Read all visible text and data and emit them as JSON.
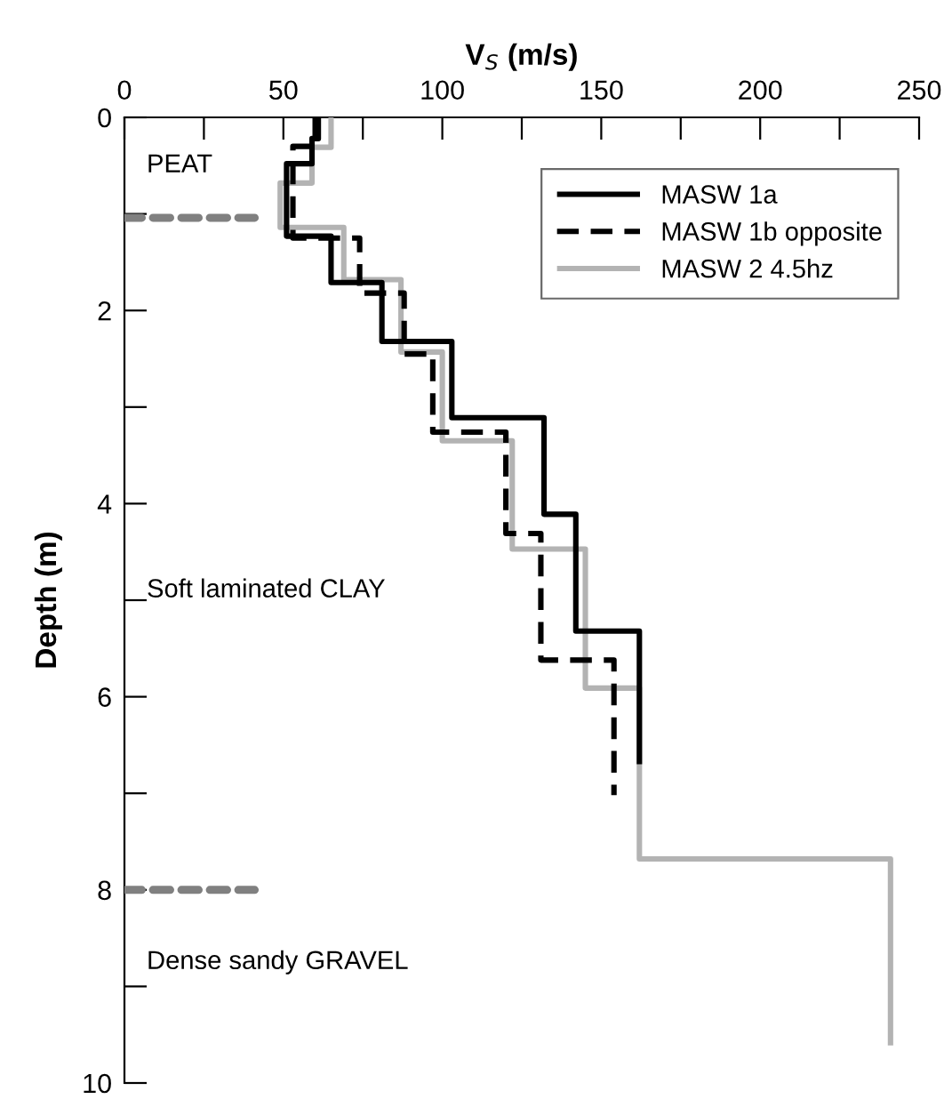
{
  "chart_data": {
    "type": "line",
    "xlabel": "V$_{S}$ (m/s)",
    "ylabel": "Depth (m)",
    "xlim": [
      0,
      250
    ],
    "ylim": [
      10,
      0
    ],
    "xticks": [
      0,
      {
        "value": 25,
        "label": null
      },
      50,
      {
        "value": 75,
        "label": null
      },
      100,
      {
        "value": 125,
        "label": null
      },
      150,
      {
        "value": 175,
        "label": null
      },
      200,
      {
        "value": 225,
        "label": null
      },
      250
    ],
    "yticks": [
      0,
      {
        "value": 1,
        "label": null
      },
      2,
      {
        "value": 3,
        "label": null
      },
      4,
      {
        "value": 5,
        "label": null
      },
      6,
      {
        "value": 7,
        "label": null
      },
      8,
      {
        "value": 9,
        "label": null
      },
      10
    ],
    "grid": false,
    "legend": "top right",
    "marker": "none",
    "series": [
      {
        "name": "MASW 1a",
        "color": "#000000",
        "line_style": "solid",
        "x": [
          61,
          61,
          59,
          59,
          51,
          51,
          65,
          65,
          81,
          81,
          103,
          103,
          132,
          132,
          142,
          142,
          162,
          162
        ],
        "values": [
          0,
          0.22,
          0.22,
          0.48,
          0.48,
          1.23,
          1.23,
          1.71,
          1.71,
          2.32,
          2.32,
          3.11,
          3.11,
          4.11,
          4.11,
          5.32,
          5.32,
          6.7
        ]
      },
      {
        "name": "MASW 1b opposite",
        "color": "#000000",
        "line_style": "dashed",
        "x": [
          60,
          60,
          53,
          53,
          74,
          74,
          88,
          88,
          97,
          97,
          120,
          120,
          131,
          131,
          154,
          154
        ],
        "values": [
          0,
          0.3,
          0.3,
          1.25,
          1.25,
          1.82,
          1.82,
          2.45,
          2.45,
          3.26,
          3.26,
          4.31,
          4.31,
          5.62,
          5.62,
          7.02
        ]
      },
      {
        "name": "MASW 2 4.5hz",
        "color": "#b3b3b3",
        "line_style": "solid",
        "x": [
          65,
          65,
          59,
          59,
          49,
          49,
          69,
          69,
          87,
          87,
          100,
          100,
          122,
          122,
          145,
          145,
          162,
          162,
          241,
          241
        ],
        "values": [
          0,
          0.31,
          0.31,
          0.68,
          0.68,
          1.14,
          1.14,
          1.68,
          1.68,
          2.43,
          2.43,
          3.35,
          3.35,
          4.47,
          4.47,
          5.91,
          5.91,
          7.68,
          7.68,
          9.61
        ]
      },
      {
        "color": "#808080",
        "line_style": "dashed",
        "x": [
          0,
          41
        ],
        "values": [
          1.04,
          1.04
        ]
      },
      {
        "color": "#808080",
        "line_style": "dashed",
        "x": [
          0,
          41
        ],
        "values": [
          8,
          8
        ]
      }
    ],
    "annotations": [
      "PEAT",
      "Soft laminated CLAY",
      "Dense sandy GRAVEL"
    ]
  }
}
